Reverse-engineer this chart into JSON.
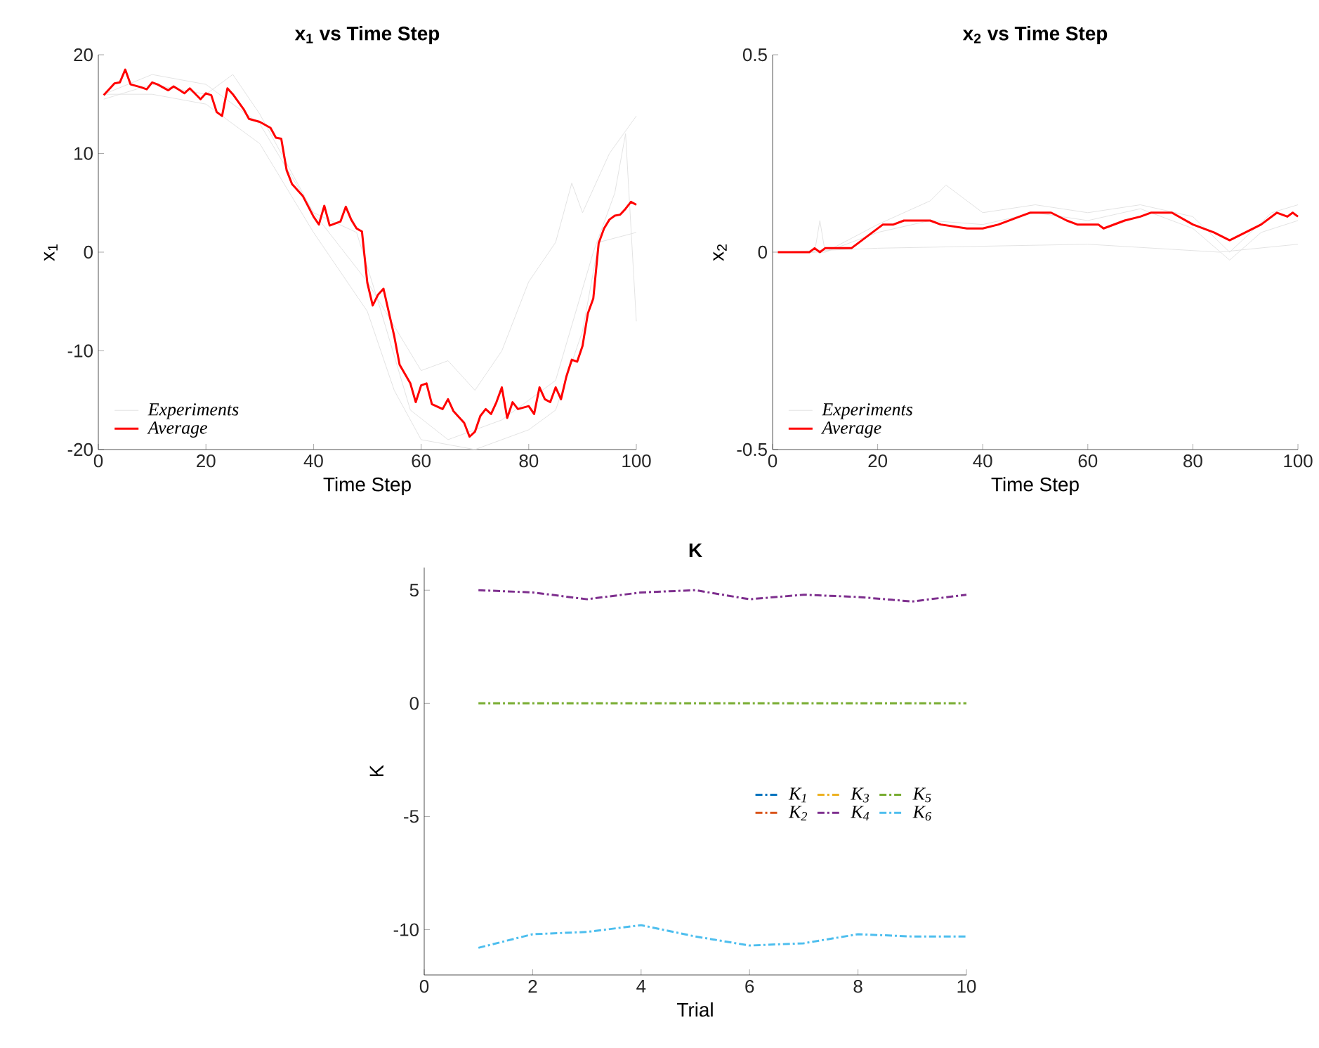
{
  "chart_data": [
    {
      "type": "line",
      "title": "x$_{1}$ vs Time Step",
      "xlabel": "Time Step",
      "ylabel": "x$_{1}$",
      "xlim": [
        0,
        100
      ],
      "ylim": [
        -20,
        20
      ],
      "xticks": [
        0,
        20,
        40,
        60,
        80,
        100
      ],
      "yticks": [
        -20,
        -10,
        0,
        10,
        20
      ],
      "legend": "bottom left",
      "grid": false,
      "series": [
        {
          "name": "Experiments",
          "color": "#e3e3e3",
          "x": [
            1,
            10,
            20,
            30,
            40,
            50,
            60,
            65,
            70,
            75,
            80,
            85,
            88,
            90,
            95,
            100
          ],
          "values": [
            16,
            18,
            17,
            13,
            4,
            -3,
            -12,
            -11,
            -14,
            -10,
            -3,
            1,
            7,
            4,
            10,
            13.8
          ]
        },
        {
          "color": "#e3e3e3",
          "x": [
            1,
            10,
            20,
            30,
            40,
            50,
            55,
            60,
            70,
            80,
            85,
            90,
            93,
            100
          ],
          "values": [
            16,
            16,
            15,
            11,
            2,
            -6,
            -14,
            -19,
            -20,
            -18,
            -16,
            -8,
            1,
            2
          ]
        },
        {
          "color": "#e3e3e3",
          "x": [
            1,
            10,
            20,
            25,
            30,
            40,
            48,
            52,
            58,
            65,
            75,
            85,
            92,
            96,
            98,
            100
          ],
          "values": [
            15.5,
            17,
            16,
            18,
            14,
            4,
            2,
            -5,
            -16,
            -19,
            -17,
            -13,
            0,
            6,
            12,
            -7
          ]
        },
        {
          "name": "Average",
          "color": "#ff0000",
          "x": [
            1,
            3,
            4,
            5,
            6,
            8,
            9,
            10,
            11,
            13,
            14,
            16,
            17,
            19,
            20,
            21,
            22,
            23,
            24,
            25,
            27,
            28,
            30,
            32,
            33,
            34,
            35,
            36,
            38,
            40,
            41,
            42,
            43,
            45,
            46,
            47,
            48,
            49,
            50,
            51,
            52,
            53,
            55,
            56,
            58,
            59,
            60,
            61,
            62,
            64,
            65,
            66,
            68,
            69,
            70,
            71,
            72,
            73,
            74,
            75,
            76,
            77,
            78,
            80,
            81,
            82,
            83,
            84,
            85,
            86,
            87,
            88,
            89,
            90,
            91,
            92,
            93,
            94,
            95,
            96,
            97,
            98,
            99,
            100
          ],
          "values": [
            15.9,
            17.1,
            17.2,
            18.5,
            17.0,
            16.7,
            16.5,
            17.2,
            17.0,
            16.4,
            16.8,
            16.1,
            16.6,
            15.5,
            16.1,
            15.9,
            14.2,
            13.8,
            16.6,
            16.0,
            14.5,
            13.5,
            13.2,
            12.6,
            11.6,
            11.5,
            8.3,
            6.9,
            5.7,
            3.6,
            2.8,
            4.7,
            2.7,
            3.1,
            4.6,
            3.3,
            2.4,
            2.1,
            -3.1,
            -5.4,
            -4.3,
            -3.7,
            -8.5,
            -11.4,
            -13.3,
            -15.2,
            -13.5,
            -13.3,
            -15.4,
            -15.9,
            -14.9,
            -16.1,
            -17.3,
            -18.7,
            -18.2,
            -16.6,
            -15.9,
            -16.4,
            -15.2,
            -13.7,
            -16.8,
            -15.2,
            -15.9,
            -15.6,
            -16.4,
            -13.7,
            -14.9,
            -15.2,
            -13.7,
            -14.9,
            -12.6,
            -10.9,
            -11.1,
            -9.5,
            -6.2,
            -4.7,
            0.9,
            2.4,
            3.3,
            3.7,
            3.8,
            4.4,
            5.1,
            4.8
          ]
        }
      ]
    },
    {
      "type": "line",
      "title": "x$_{2}$ vs Time Step",
      "xlabel": "Time Step",
      "ylabel": "x$_{2}$",
      "xlim": [
        0,
        100
      ],
      "ylim": [
        -0.5,
        0.5
      ],
      "xticks": [
        0,
        20,
        40,
        60,
        80,
        100
      ],
      "yticks": [
        -0.5,
        0,
        0.5
      ],
      "legend": "bottom left",
      "grid": false,
      "series": [
        {
          "name": "Experiments",
          "color": "#e3e3e3",
          "x": [
            1,
            20,
            60,
            85,
            100
          ],
          "values": [
            0,
            0.01,
            0.02,
            0,
            0.02
          ]
        },
        {
          "color": "#e3e3e3",
          "x": [
            1,
            8,
            9,
            10,
            20,
            30,
            33,
            40,
            50,
            60,
            70,
            80,
            87,
            95,
            100
          ],
          "values": [
            0,
            0,
            0.08,
            0,
            0.07,
            0.13,
            0.17,
            0.1,
            0.12,
            0.1,
            0.12,
            0.09,
            0,
            0.1,
            0.12
          ]
        },
        {
          "color": "#e3e3e3",
          "x": [
            1,
            10,
            20,
            30,
            40,
            50,
            60,
            70,
            80,
            87,
            93,
            100
          ],
          "values": [
            0,
            0,
            0.05,
            0.08,
            0.07,
            0.1,
            0.08,
            0.11,
            0.06,
            -0.02,
            0.05,
            0.08
          ]
        },
        {
          "name": "Average",
          "color": "#ff0000",
          "x": [
            1,
            7,
            8,
            9,
            10,
            15,
            17,
            19,
            21,
            23,
            25,
            30,
            32,
            37,
            40,
            43,
            47,
            49,
            53,
            56,
            58,
            62,
            63,
            67,
            70,
            72,
            76,
            80,
            84,
            87,
            90,
            93,
            96,
            98,
            99,
            100
          ],
          "values": [
            0,
            0,
            0.01,
            0,
            0.01,
            0.01,
            0.03,
            0.05,
            0.07,
            0.07,
            0.08,
            0.08,
            0.07,
            0.06,
            0.06,
            0.07,
            0.09,
            0.1,
            0.1,
            0.08,
            0.07,
            0.07,
            0.06,
            0.08,
            0.09,
            0.1,
            0.1,
            0.07,
            0.05,
            0.03,
            0.05,
            0.07,
            0.1,
            0.09,
            0.1,
            0.09
          ]
        }
      ]
    },
    {
      "type": "line",
      "title": "K",
      "xlabel": "Trial",
      "ylabel": "K",
      "xlim": [
        0,
        10
      ],
      "ylim": [
        -12,
        6
      ],
      "xticks": [
        0,
        2,
        4,
        6,
        8,
        10
      ],
      "yticks": [
        -10,
        -5,
        0,
        5
      ],
      "legend": "right",
      "grid": false,
      "line_style": "dashed",
      "x": [
        1,
        2,
        3,
        4,
        5,
        6,
        7,
        8,
        9,
        10
      ],
      "series": [
        {
          "name": "K$_{1}$",
          "color": "#0072bd",
          "values": [
            null,
            null,
            null,
            null,
            null,
            null,
            null,
            null,
            null,
            null
          ]
        },
        {
          "name": "K$_{2}$",
          "color": "#d95319",
          "values": [
            null,
            null,
            null,
            null,
            null,
            null,
            null,
            null,
            null,
            null
          ]
        },
        {
          "name": "K$_{3}$",
          "color": "#edb120",
          "values": [
            null,
            null,
            null,
            null,
            null,
            null,
            null,
            null,
            null,
            null
          ]
        },
        {
          "name": "K$_{4}$",
          "color": "#7e2f8e",
          "values": [
            5.0,
            4.9,
            4.6,
            4.9,
            5.0,
            4.6,
            4.8,
            4.7,
            4.5,
            4.8
          ]
        },
        {
          "name": "K$_{5}$",
          "color": "#77ac30",
          "values": [
            0,
            0,
            0,
            0,
            0,
            0,
            0,
            0,
            0,
            0
          ]
        },
        {
          "name": "K$_{6}$",
          "color": "#4dbeee",
          "values": [
            -10.8,
            -10.2,
            -10.1,
            -9.8,
            -10.3,
            -10.7,
            -10.6,
            -10.2,
            -10.3,
            -10.3
          ]
        }
      ]
    }
  ]
}
